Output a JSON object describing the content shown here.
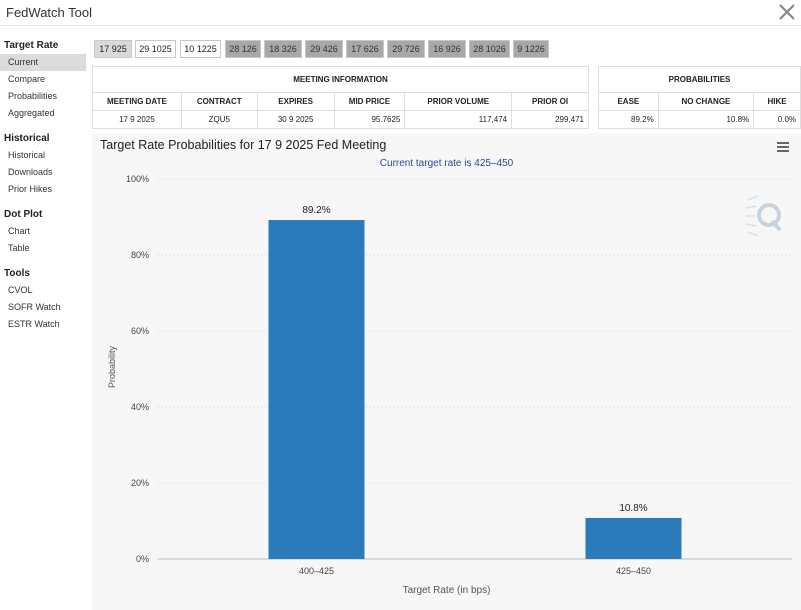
{
  "app": {
    "title": "FedWatch Tool"
  },
  "sidebar": {
    "sections": [
      {
        "heading": "Target Rate",
        "items": [
          "Current",
          "Compare",
          "Probabilities",
          "Aggregated"
        ]
      },
      {
        "heading": "Historical",
        "items": [
          "Historical",
          "Downloads",
          "Prior Hikes"
        ]
      },
      {
        "heading": "Dot Plot",
        "items": [
          "Chart",
          "Table"
        ]
      },
      {
        "heading": "Tools",
        "items": [
          "CVOL",
          "SOFR Watch",
          "ESTR Watch"
        ]
      }
    ],
    "active_item": "Current"
  },
  "date_tabs": [
    "17 925",
    "29 1025",
    "10 1225",
    "28 126",
    "18 326",
    "29 426",
    "17 626",
    "29 726",
    "16 926",
    "28 1026",
    "9 1226"
  ],
  "meeting_info": {
    "caption": "MEETING INFORMATION",
    "columns": [
      "MEETING DATE",
      "CONTRACT",
      "EXPIRES",
      "MID PRICE",
      "PRIOR VOLUME",
      "PRIOR OI"
    ],
    "row": [
      "17 9 2025",
      "ZQU5",
      "30 9 2025",
      "95.7625",
      "117,474",
      "299,471"
    ]
  },
  "probabilities": {
    "caption": "PROBABILITIES",
    "columns": [
      "EASE",
      "NO CHANGE",
      "HIKE"
    ],
    "row": [
      "89.2%",
      "10.8%",
      "0.0%"
    ]
  },
  "chart": {
    "title": "Target Rate Probabilities for 17 9 2025 Fed Meeting",
    "subtitle": "Current target rate is 425–450"
  },
  "colors": {
    "bar": "#2b7bba",
    "subtitle": "#2b4a8a"
  },
  "chart_data": {
    "type": "bar",
    "title": "Target Rate Probabilities for 17 9 2025 Fed Meeting",
    "subtitle": "Current target rate is 425–450",
    "xlabel": "Target Rate (in bps)",
    "ylabel": "Probability",
    "categories": [
      "400–425",
      "425–450"
    ],
    "values": [
      89.2,
      10.8
    ],
    "value_labels": [
      "89.2%",
      "10.8%"
    ],
    "yticks": [
      "0%",
      "20%",
      "40%",
      "60%",
      "80%",
      "100%"
    ],
    "ylim": [
      0,
      100
    ],
    "grid": true
  }
}
